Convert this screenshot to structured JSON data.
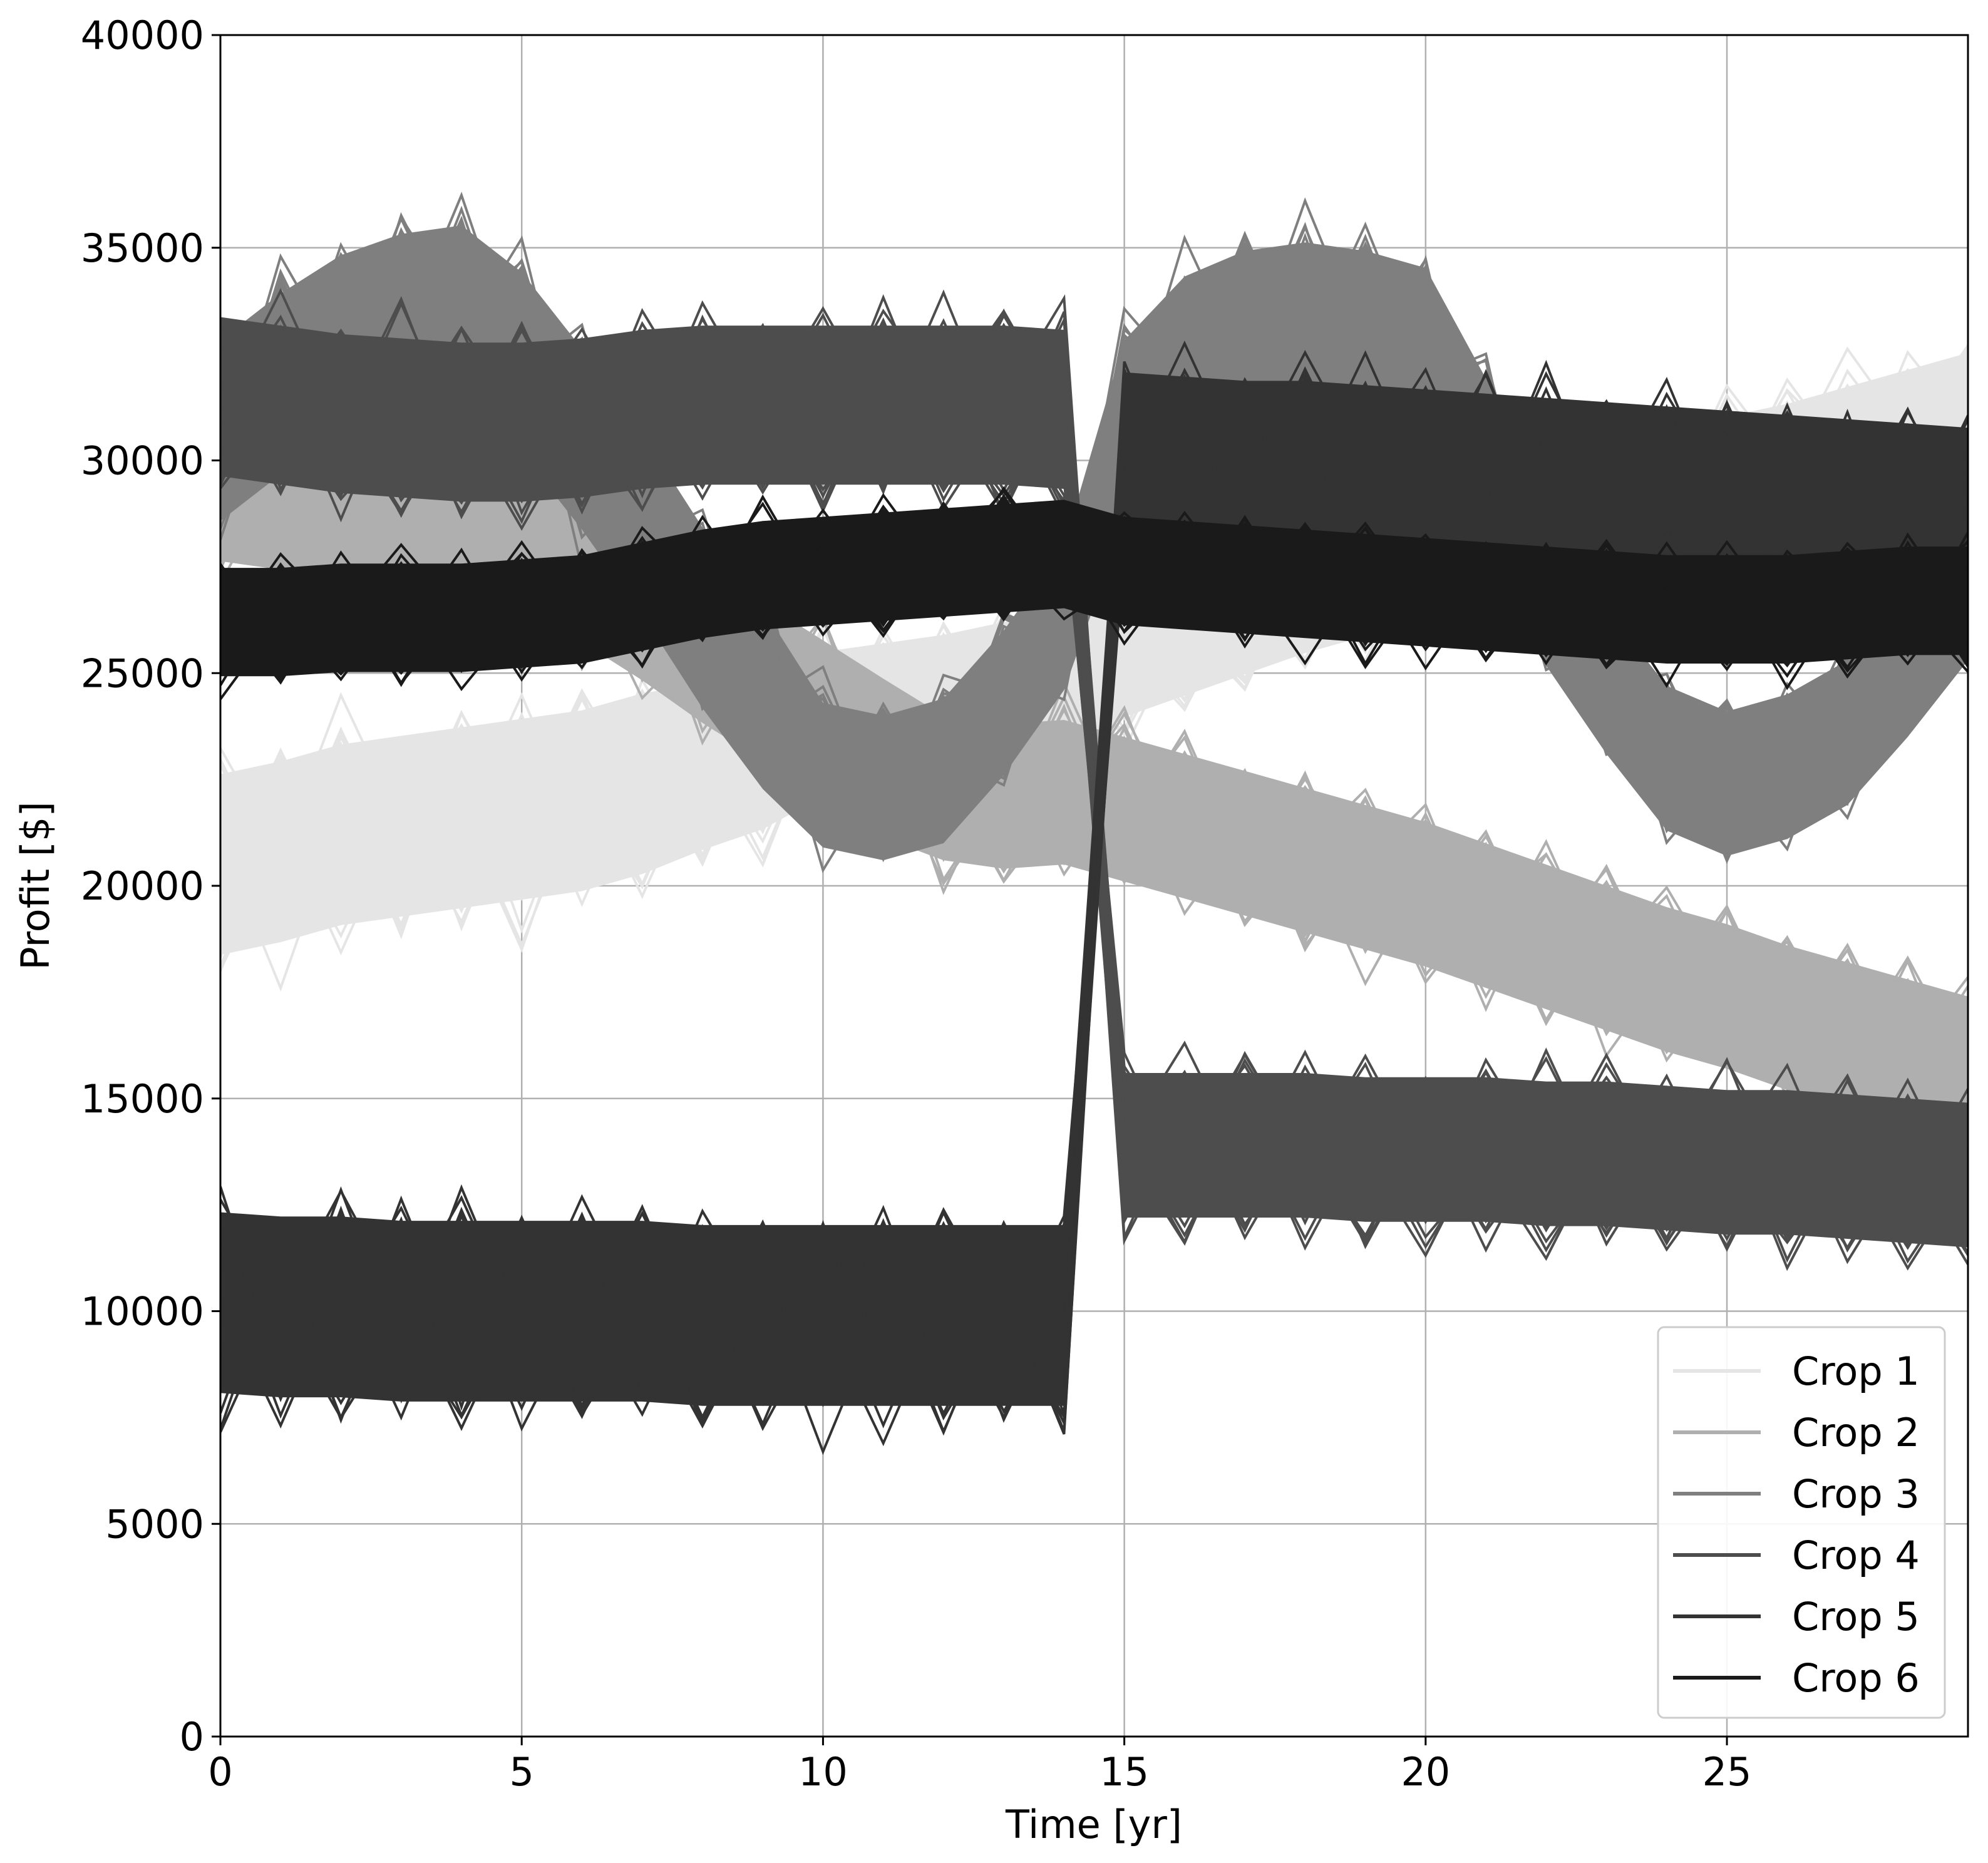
{
  "chart_data": {
    "type": "line",
    "title": "",
    "xlabel": "Time [yr]",
    "ylabel": "Profit [$]",
    "xlim": [
      0,
      29
    ],
    "ylim": [
      0,
      40000
    ],
    "grid": true,
    "legend_position": "bottom-right",
    "xticks": [
      {
        "value": 0,
        "label": "0"
      },
      {
        "value": 5,
        "label": "5"
      },
      {
        "value": 10,
        "label": "10"
      },
      {
        "value": 15,
        "label": "15"
      },
      {
        "value": 20,
        "label": "20"
      },
      {
        "value": 25,
        "label": "25"
      }
    ],
    "yticks": [
      {
        "value": 0,
        "label": "0"
      },
      {
        "value": 5000,
        "label": "5000"
      },
      {
        "value": 10000,
        "label": "10000"
      },
      {
        "value": 15000,
        "label": "15000"
      },
      {
        "value": 20000,
        "label": "20000"
      },
      {
        "value": 25000,
        "label": "25000"
      },
      {
        "value": 30000,
        "label": "30000"
      },
      {
        "value": 35000,
        "label": "35000"
      },
      {
        "value": 40000,
        "label": "40000"
      }
    ],
    "x": [
      0,
      1,
      2,
      3,
      4,
      5,
      6,
      7,
      8,
      9,
      10,
      11,
      12,
      13,
      14,
      15,
      16,
      17,
      18,
      19,
      20,
      21,
      22,
      23,
      24,
      25,
      26,
      27,
      28,
      29
    ],
    "series": [
      {
        "name": "Crop 1",
        "color": "#e5e5e5",
        "mean": [
          20500,
          20800,
          21200,
          21400,
          21600,
          21800,
          22000,
          22400,
          22800,
          23200,
          23800,
          24000,
          24200,
          24500,
          24700,
          25500,
          26000,
          26500,
          27000,
          27400,
          27800,
          28200,
          28500,
          28800,
          29100,
          29500,
          29800,
          30200,
          30600,
          31000
        ],
        "spread": [
          2500,
          2500,
          2500,
          2500,
          2500,
          2500,
          2500,
          2500,
          2300,
          2200,
          2000,
          2000,
          2000,
          2000,
          2000,
          1800,
          1800,
          1800,
          1800,
          1800,
          1800,
          1800,
          1800,
          1800,
          1800,
          1800,
          1800,
          1800,
          1800,
          1800
        ]
      },
      {
        "name": "Crop 2",
        "color": "#afafaf",
        "mean": [
          29500,
          29300,
          29100,
          28900,
          28700,
          28400,
          27600,
          26700,
          25700,
          24800,
          23900,
          23000,
          22300,
          22100,
          22200,
          21800,
          21400,
          21000,
          20600,
          20200,
          19800,
          19300,
          18800,
          18300,
          17800,
          17400,
          16900,
          16500,
          16100,
          15700
        ],
        "spread": [
          2200,
          2200,
          2200,
          2200,
          2200,
          2200,
          2200,
          2200,
          2200,
          2200,
          2200,
          2200,
          2000,
          2000,
          2000,
          2000,
          2000,
          2000,
          2000,
          2000,
          2000,
          2000,
          2000,
          2000,
          2000,
          2000,
          2000,
          2000,
          2000,
          2000
        ]
      },
      {
        "name": "Crop 3",
        "color": "#7f7f7f",
        "mean": [
          30700,
          31800,
          32700,
          33200,
          33400,
          32300,
          30500,
          28500,
          26300,
          24400,
          22600,
          22300,
          22700,
          24300,
          26300,
          30700,
          32200,
          32800,
          33000,
          32800,
          32400,
          29800,
          27300,
          24800,
          23000,
          22400,
          22800,
          23600,
          25200,
          27000
        ],
        "spread": [
          2500,
          2500,
          2500,
          2500,
          2500,
          2500,
          2500,
          2500,
          2500,
          2500,
          2000,
          2000,
          2000,
          2000,
          2000,
          2500,
          2500,
          2500,
          2500,
          2500,
          2500,
          2500,
          2500,
          2000,
          2000,
          2000,
          2000,
          2000,
          2000,
          2000
        ]
      },
      {
        "name": "Crop 4",
        "color": "#4d4d4d",
        "mean": [
          31500,
          31300,
          31100,
          31000,
          30900,
          30900,
          31000,
          31200,
          31300,
          31300,
          31300,
          31300,
          31300,
          31300,
          31200,
          13900,
          13900,
          13900,
          13900,
          13800,
          13800,
          13800,
          13700,
          13700,
          13600,
          13500,
          13500,
          13400,
          13300,
          13200
        ],
        "spread": [
          2200,
          2200,
          2200,
          2200,
          2200,
          2200,
          2200,
          2200,
          2200,
          2200,
          2200,
          2200,
          2200,
          2200,
          2200,
          2000,
          2000,
          2000,
          2000,
          2000,
          2000,
          2000,
          2000,
          2000,
          2000,
          2000,
          2000,
          2000,
          2000,
          2000
        ]
      },
      {
        "name": "Crop 5",
        "color": "#333333",
        "mean": [
          10200,
          10100,
          10100,
          10000,
          10000,
          10000,
          10000,
          10000,
          9900,
          9900,
          9900,
          9900,
          9900,
          9900,
          9900,
          30200,
          30100,
          30000,
          30000,
          29900,
          29800,
          29700,
          29600,
          29500,
          29400,
          29300,
          29200,
          29100,
          29000,
          28900
        ],
        "spread": [
          2500,
          2500,
          2500,
          2500,
          2500,
          2500,
          2500,
          2500,
          2500,
          2500,
          2500,
          2500,
          2500,
          2500,
          2500,
          2200,
          2200,
          2200,
          2200,
          2200,
          2200,
          2200,
          2200,
          2200,
          2200,
          2200,
          2200,
          2200,
          2200,
          2200
        ]
      },
      {
        "name": "Crop 6",
        "color": "#1a1a1a",
        "mean": [
          26200,
          26200,
          26300,
          26300,
          26300,
          26400,
          26500,
          26800,
          27100,
          27300,
          27400,
          27500,
          27600,
          27700,
          27800,
          27400,
          27300,
          27200,
          27100,
          27000,
          26900,
          26800,
          26700,
          26600,
          26500,
          26500,
          26500,
          26600,
          26700,
          26700
        ],
        "spread": [
          1500,
          1500,
          1500,
          1500,
          1500,
          1500,
          1500,
          1500,
          1500,
          1500,
          1500,
          1500,
          1500,
          1500,
          1500,
          1500,
          1500,
          1500,
          1500,
          1500,
          1500,
          1500,
          1500,
          1500,
          1500,
          1500,
          1500,
          1500,
          1500,
          1500
        ]
      }
    ]
  }
}
